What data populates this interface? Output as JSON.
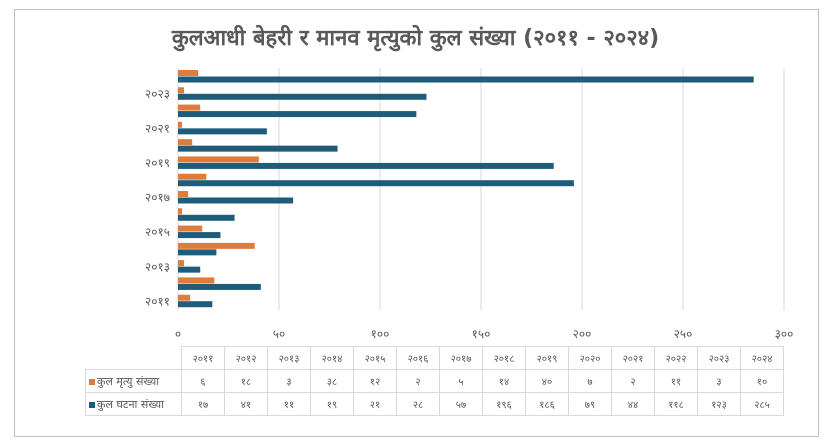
{
  "chart_data": {
    "type": "bar",
    "orientation": "horizontal",
    "title": "कुलआधी बेहरी र मानव मृत्युको कुल संख्या (२०११ - २०२४)",
    "categories": [
      "२०११",
      "२०१२",
      "२०१३",
      "२०१४",
      "२०१५",
      "२०१६",
      "२०१७",
      "२०१८",
      "२०१९",
      "२०२०",
      "२०२१",
      "२०२२",
      "२०२३",
      "२०२४"
    ],
    "series": [
      {
        "name": "कुल मृत्यु संख्या",
        "color": "#e07b39",
        "values": [
          6,
          18,
          3,
          38,
          12,
          2,
          5,
          14,
          40,
          7,
          2,
          11,
          3,
          10
        ],
        "labels": [
          "६",
          "१८",
          "३",
          "३८",
          "१२",
          "२",
          "५",
          "१४",
          "४०",
          "७",
          "२",
          "११",
          "३",
          "१०"
        ]
      },
      {
        "name": "कुल घटना संख्या",
        "color": "#1f5c7a",
        "values": [
          17,
          41,
          11,
          19,
          21,
          28,
          57,
          196,
          186,
          79,
          44,
          118,
          123,
          285
        ],
        "labels": [
          "१७",
          "४१",
          "११",
          "१९",
          "२१",
          "२८",
          "५७",
          "१९६",
          "१८६",
          "७९",
          "४४",
          "११८",
          "१२३",
          "२८५"
        ]
      }
    ],
    "xlim": [
      0,
      300
    ],
    "xticks": [
      0,
      50,
      100,
      150,
      200,
      250,
      300
    ],
    "xtick_labels": [
      "०",
      "५०",
      "१००",
      "१५०",
      "२००",
      "२५०",
      "३००"
    ],
    "ytick_labels_shown": [
      "२०११",
      "२०१३",
      "२०१५",
      "२०१७",
      "२०१९",
      "२०२१",
      "२०२३"
    ],
    "grid": true,
    "legend": "data-table"
  }
}
